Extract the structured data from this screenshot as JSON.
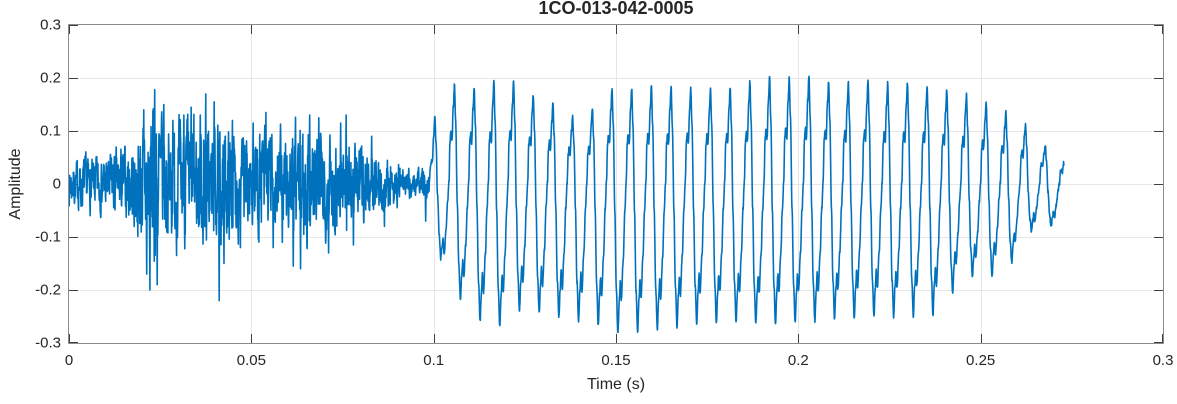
{
  "chart_data": {
    "type": "line",
    "title": "1CO-013-042-0005",
    "xlabel": "Time (s)",
    "ylabel": "Amplitude",
    "xlim": [
      0,
      0.3
    ],
    "ylim": [
      -0.3,
      0.3
    ],
    "xticks": [
      0,
      0.05,
      0.1,
      0.15,
      0.2,
      0.25,
      0.3
    ],
    "xtick_labels": [
      "0",
      "0.05",
      "0.1",
      "0.15",
      "0.2",
      "0.25",
      "0.3"
    ],
    "yticks": [
      -0.3,
      -0.2,
      -0.1,
      0,
      0.1,
      0.2,
      0.3
    ],
    "ytick_labels": [
      "-0.3",
      "-0.2",
      "-0.1",
      "0",
      "0.1",
      "0.2",
      "0.3"
    ],
    "grid": true,
    "legend": "none",
    "line_color": "#0072BD",
    "grid_color": "#e6e6e6",
    "axis_box_color": "#8c8c8c",
    "tick_color": "#404040",
    "text_color": "#262626",
    "background_color": "#ffffff",
    "signal": {
      "description": "Speech-like waveform: broadband noise burst from 0 to ~0.098 s, then a quasi-periodic voiced tone (~185 Hz) from ~0.098 to ~0.273 s, asymmetric with positive peaks near +0.2 and troughs near -0.28, decaying after 0.25 s",
      "sample_rate_hz": 16000,
      "noise_seed": 7,
      "noise": {
        "t_start": 0,
        "t_end": 0.0988,
        "envelope": [
          [
            0,
            0.04
          ],
          [
            0.004,
            0.05
          ],
          [
            0.008,
            0.05
          ],
          [
            0.012,
            0.06
          ],
          [
            0.016,
            0.07
          ],
          [
            0.019,
            0.1
          ],
          [
            0.022,
            0.16
          ],
          [
            0.0245,
            0.15
          ],
          [
            0.027,
            0.12
          ],
          [
            0.03,
            0.11
          ],
          [
            0.033,
            0.12
          ],
          [
            0.036,
            0.125
          ],
          [
            0.039,
            0.11
          ],
          [
            0.042,
            0.1
          ],
          [
            0.045,
            0.105
          ],
          [
            0.048,
            0.09
          ],
          [
            0.051,
            0.095
          ],
          [
            0.054,
            0.11
          ],
          [
            0.057,
            0.09
          ],
          [
            0.06,
            0.1
          ],
          [
            0.063,
            0.115
          ],
          [
            0.066,
            0.11
          ],
          [
            0.069,
            0.1
          ],
          [
            0.072,
            0.09
          ],
          [
            0.075,
            0.09
          ],
          [
            0.078,
            0.075
          ],
          [
            0.081,
            0.07
          ],
          [
            0.084,
            0.06
          ],
          [
            0.087,
            0.05
          ],
          [
            0.09,
            0.042
          ],
          [
            0.093,
            0.032
          ],
          [
            0.0955,
            0.028
          ],
          [
            0.097,
            0.034
          ],
          [
            0.0988,
            0.02
          ]
        ],
        "spikes": [
          [
            0.0205,
            0.14
          ],
          [
            0.0213,
            -0.17
          ],
          [
            0.0222,
            -0.2
          ],
          [
            0.0235,
            0.178
          ],
          [
            0.0242,
            -0.19
          ],
          [
            0.026,
            0.15
          ],
          [
            0.0285,
            0.12
          ],
          [
            0.0315,
            0.13
          ],
          [
            0.0335,
            0.145
          ],
          [
            0.036,
            0.13
          ],
          [
            0.0375,
            0.17
          ],
          [
            0.0398,
            0.155
          ],
          [
            0.0412,
            -0.22
          ],
          [
            0.0425,
            -0.15
          ],
          [
            0.0448,
            0.12
          ],
          [
            0.047,
            -0.12
          ],
          [
            0.0505,
            0.115
          ],
          [
            0.054,
            0.135
          ],
          [
            0.056,
            -0.12
          ],
          [
            0.0585,
            -0.11
          ],
          [
            0.0615,
            -0.155
          ],
          [
            0.0635,
            -0.16
          ],
          [
            0.066,
            0.13
          ],
          [
            0.0685,
            0.125
          ],
          [
            0.0712,
            -0.13
          ],
          [
            0.0745,
            0.115
          ],
          [
            0.076,
            0.13
          ],
          [
            0.078,
            -0.115
          ],
          [
            0.083,
            0.09
          ],
          [
            0.0865,
            -0.08
          ],
          [
            0.0978,
            -0.07
          ]
        ]
      },
      "tone": {
        "t_start": 0.0988,
        "t_end": 0.2728,
        "period_s": 0.0054,
        "cycle_shape": [
          [
            0,
            0.02
          ],
          [
            0.05,
            0.42
          ],
          [
            0.1,
            0.52
          ],
          [
            0.15,
            0.42
          ],
          [
            0.22,
            0.78
          ],
          [
            0.28,
            1.0
          ],
          [
            0.34,
            0.62
          ],
          [
            0.42,
            -0.18
          ],
          [
            0.5,
            -0.72
          ],
          [
            0.58,
            -1.0
          ],
          [
            0.65,
            -0.78
          ],
          [
            0.7,
            -0.65
          ],
          [
            0.75,
            -0.78
          ],
          [
            0.85,
            -0.5
          ],
          [
            0.93,
            -0.18
          ],
          [
            1,
            0.02
          ]
        ],
        "pos_envelope": [
          [
            0.0988,
            0.06
          ],
          [
            0.1002,
            0.125
          ],
          [
            0.1035,
            0.19
          ],
          [
            0.108,
            0.185
          ],
          [
            0.113,
            0.18
          ],
          [
            0.118,
            0.2
          ],
          [
            0.1235,
            0.19
          ],
          [
            0.1285,
            0.16
          ],
          [
            0.132,
            0.155
          ],
          [
            0.1365,
            0.13
          ],
          [
            0.1405,
            0.125
          ],
          [
            0.1445,
            0.15
          ],
          [
            0.148,
            0.18
          ],
          [
            0.153,
            0.18
          ],
          [
            0.158,
            0.185
          ],
          [
            0.163,
            0.18
          ],
          [
            0.168,
            0.185
          ],
          [
            0.173,
            0.175
          ],
          [
            0.178,
            0.18
          ],
          [
            0.183,
            0.185
          ],
          [
            0.188,
            0.195
          ],
          [
            0.1935,
            0.205
          ],
          [
            0.198,
            0.2
          ],
          [
            0.2035,
            0.205
          ],
          [
            0.208,
            0.195
          ],
          [
            0.213,
            0.19
          ],
          [
            0.218,
            0.195
          ],
          [
            0.223,
            0.19
          ],
          [
            0.228,
            0.19
          ],
          [
            0.233,
            0.19
          ],
          [
            0.238,
            0.18
          ],
          [
            0.2435,
            0.175
          ],
          [
            0.2457,
            0.17
          ],
          [
            0.2507,
            0.155
          ],
          [
            0.2553,
            0.143
          ],
          [
            0.2608,
            0.124
          ],
          [
            0.2668,
            0.079
          ],
          [
            0.2712,
            0.055
          ],
          [
            0.2728,
            0.05
          ]
        ],
        "neg_envelope": [
          [
            0.0988,
            0.05
          ],
          [
            0.1005,
            0.1
          ],
          [
            0.103,
            0.17
          ],
          [
            0.106,
            0.2
          ],
          [
            0.109,
            0.235
          ],
          [
            0.113,
            0.26
          ],
          [
            0.118,
            0.27
          ],
          [
            0.124,
            0.235
          ],
          [
            0.128,
            0.24
          ],
          [
            0.133,
            0.25
          ],
          [
            0.138,
            0.255
          ],
          [
            0.143,
            0.26
          ],
          [
            0.148,
            0.275
          ],
          [
            0.153,
            0.285
          ],
          [
            0.158,
            0.275
          ],
          [
            0.163,
            0.275
          ],
          [
            0.17,
            0.265
          ],
          [
            0.18,
            0.26
          ],
          [
            0.19,
            0.265
          ],
          [
            0.2,
            0.26
          ],
          [
            0.21,
            0.255
          ],
          [
            0.22,
            0.25
          ],
          [
            0.23,
            0.25
          ],
          [
            0.2375,
            0.245
          ],
          [
            0.2405,
            0.23
          ],
          [
            0.2435,
            0.19
          ],
          [
            0.2468,
            0.17
          ],
          [
            0.2495,
            0.18
          ],
          [
            0.2525,
            0.175
          ],
          [
            0.258,
            0.155
          ],
          [
            0.2635,
            0.09
          ],
          [
            0.2695,
            0.08
          ],
          [
            0.2728,
            0.07
          ]
        ],
        "fuzz_amplitude": 0.008
      }
    }
  }
}
